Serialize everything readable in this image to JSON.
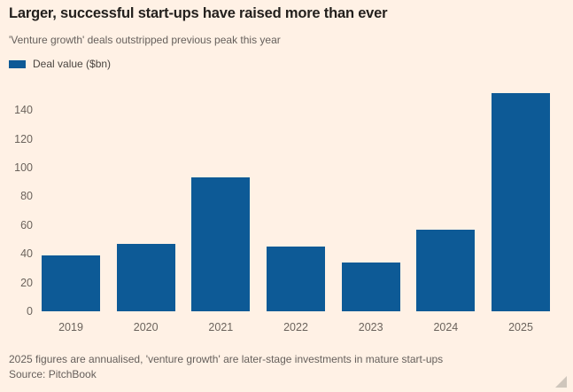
{
  "page": {
    "background_color": "#FFF1E5"
  },
  "header": {
    "title": "Larger, successful start-ups have raised more than ever",
    "subtitle": "'Venture growth' deals outstripped previous peak this year"
  },
  "legend": {
    "label": "Deal value ($bn)",
    "swatch_color": "#0d5a96"
  },
  "chart_data": {
    "type": "bar",
    "title": "Larger, successful start-ups have raised more than ever",
    "subtitle": "'Venture growth' deals outstripped previous peak this year",
    "series_name": "Deal value ($bn)",
    "categories": [
      "2019",
      "2020",
      "2021",
      "2022",
      "2023",
      "2024",
      "2025"
    ],
    "values": [
      39,
      47,
      93,
      45,
      34,
      57,
      152
    ],
    "xlabel": "",
    "ylabel": "Deal value ($bn)",
    "ylim": [
      0,
      160
    ],
    "yticks": [
      0,
      20,
      40,
      60,
      80,
      100,
      120,
      140
    ],
    "grid": false,
    "legend_position": "top-left",
    "bar_color": "#0d5a96"
  },
  "footer": {
    "note": "2025 figures are annualised, 'venture growth' are later-stage investments in mature start-ups",
    "source": "Source: PitchBook"
  },
  "icons": {
    "resize_handle": "resize-grip-icon"
  }
}
